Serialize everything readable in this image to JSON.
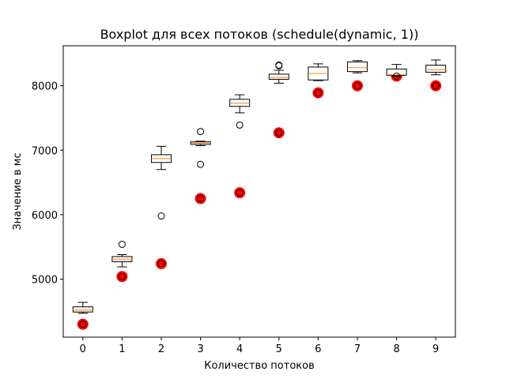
{
  "chart_data": {
    "type": "boxplot",
    "title": "Boxplot для всех потоков (schedule(dynamic, 1))",
    "xlabel": "Количество потоков",
    "ylabel": "Значение в мс",
    "categories": [
      "0",
      "1",
      "2",
      "3",
      "4",
      "5",
      "6",
      "7",
      "8",
      "9"
    ],
    "ylim": [
      4100,
      8620
    ],
    "yticks": [
      5000,
      6000,
      7000,
      8000
    ],
    "grid": false,
    "boxes": [
      {
        "x": 0,
        "whisker_low": 4470,
        "q1": 4490,
        "median": 4520,
        "q3": 4570,
        "whisker_high": 4640,
        "outliers": [
          4300
        ]
      },
      {
        "x": 1,
        "whisker_low": 5190,
        "q1": 5270,
        "median": 5310,
        "q3": 5350,
        "whisker_high": 5380,
        "outliers": [
          5540,
          5040
        ]
      },
      {
        "x": 2,
        "whisker_low": 6700,
        "q1": 6810,
        "median": 6870,
        "q3": 6930,
        "whisker_high": 7060,
        "outliers": [
          5980,
          5240
        ]
      },
      {
        "x": 3,
        "whisker_low": 7070,
        "q1": 7090,
        "median": 7110,
        "q3": 7130,
        "whisker_high": 7140,
        "outliers": [
          7290,
          6780,
          6250
        ]
      },
      {
        "x": 4,
        "whisker_low": 7580,
        "q1": 7680,
        "median": 7730,
        "q3": 7790,
        "whisker_high": 7860,
        "outliers": [
          7390,
          6340
        ]
      },
      {
        "x": 5,
        "whisker_low": 8040,
        "q1": 8100,
        "median": 8130,
        "q3": 8180,
        "whisker_high": 8240,
        "outliers": [
          8320,
          8310,
          7270
        ]
      },
      {
        "x": 6,
        "whisker_low": 8080,
        "q1": 8090,
        "median": 8190,
        "q3": 8290,
        "whisker_high": 8340,
        "outliers": [
          7890
        ]
      },
      {
        "x": 7,
        "whisker_low": 8200,
        "q1": 8220,
        "median": 8280,
        "q3": 8370,
        "whisker_high": 8390,
        "outliers": [
          8000
        ]
      },
      {
        "x": 8,
        "whisker_low": 8150,
        "q1": 8160,
        "median": 8170,
        "q3": 8260,
        "whisker_high": 8330,
        "outliers": [
          8150
        ]
      },
      {
        "x": 9,
        "whisker_low": 8170,
        "q1": 8210,
        "median": 8250,
        "q3": 8320,
        "whisker_high": 8400,
        "outliers": [
          8000
        ]
      }
    ],
    "highlight_points": [
      {
        "x": 0,
        "y": 4300
      },
      {
        "x": 1,
        "y": 5040
      },
      {
        "x": 2,
        "y": 5240
      },
      {
        "x": 3,
        "y": 6250
      },
      {
        "x": 4,
        "y": 6340
      },
      {
        "x": 5,
        "y": 7270
      },
      {
        "x": 6,
        "y": 7890
      },
      {
        "x": 7,
        "y": 8000
      },
      {
        "x": 8,
        "y": 8150
      },
      {
        "x": 9,
        "y": 8000
      }
    ],
    "colors": {
      "box": "#000000",
      "median": "#ff7f0e",
      "highlight": "#ff0000",
      "outlier": "#000000"
    }
  }
}
